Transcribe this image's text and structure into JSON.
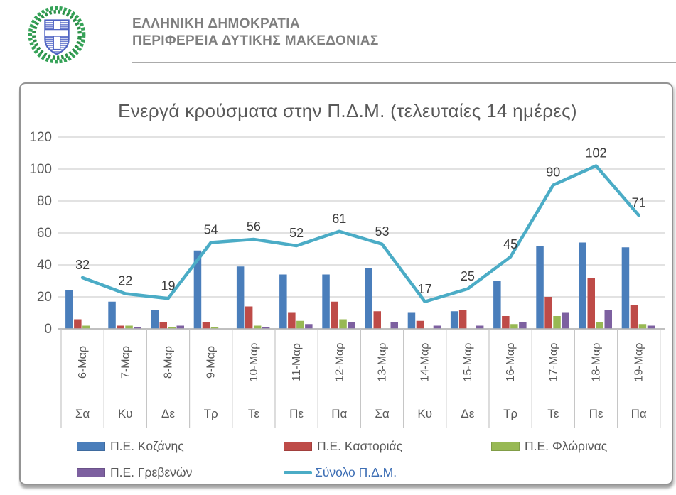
{
  "header": {
    "logo": "hellenic-republic-emblem",
    "line1": "ΕΛΛΗΝΙΚΗ ΔΗΜΟΚΡΑΤΙΑ",
    "line2": "ΠΕΡΙΦΕΡΕΙΑ ΔΥΤΙΚΗΣ ΜΑΚΕΔΟΝΙΑΣ"
  },
  "chart_data": {
    "type": "bar",
    "subtype": "clustered-bars-with-total-line",
    "title": "Ενεργά κρούσματα στην Π.Δ.Μ. (τελευταίες 14 ημέρες)",
    "categories": [
      "6-Μαρ",
      "7-Μαρ",
      "8-Μαρ",
      "9-Μαρ",
      "10-Μαρ",
      "11-Μαρ",
      "12-Μαρ",
      "13-Μαρ",
      "14-Μαρ",
      "15-Μαρ",
      "16-Μαρ",
      "17-Μαρ",
      "18-Μαρ",
      "19-Μαρ"
    ],
    "category_days": [
      "Σα",
      "Κυ",
      "Δε",
      "Τρ",
      "Τε",
      "Πε",
      "Πα",
      "Σα",
      "Κυ",
      "Δε",
      "Τρ",
      "Τε",
      "Πε",
      "Πα"
    ],
    "series": [
      {
        "name": "Π.Ε. Κοζάνης",
        "color": "#4A7EBB",
        "values": [
          24,
          17,
          12,
          49,
          39,
          34,
          34,
          38,
          10,
          11,
          30,
          52,
          54,
          51
        ]
      },
      {
        "name": "Π.Ε. Καστοριάς",
        "color": "#BE4B48",
        "values": [
          6,
          2,
          4,
          4,
          14,
          10,
          17,
          11,
          5,
          12,
          8,
          20,
          32,
          15
        ]
      },
      {
        "name": "Π.Ε. Φλώρινας",
        "color": "#98B954",
        "values": [
          2,
          2,
          1,
          1,
          2,
          5,
          6,
          0,
          0,
          0,
          3,
          8,
          4,
          3
        ]
      },
      {
        "name": "Π.Ε. Γρεβενών",
        "color": "#7D60A0",
        "values": [
          0,
          1,
          2,
          0,
          1,
          3,
          4,
          4,
          2,
          2,
          4,
          10,
          12,
          2
        ]
      }
    ],
    "line_series": {
      "name": "Σύνολο Π.Δ.Μ.",
      "color": "#4BACC6",
      "label_color": "#3E6FB5",
      "values": [
        32,
        22,
        19,
        54,
        56,
        52,
        61,
        53,
        17,
        25,
        45,
        90,
        102,
        71
      ],
      "labels_shown": true
    },
    "xlabel": "",
    "ylabel": "",
    "ylim": [
      0,
      120
    ],
    "ytick_interval": 20,
    "yticks": [
      0,
      20,
      40,
      60,
      80,
      100,
      120
    ],
    "grid": "horizontal",
    "legend_position": "bottom",
    "colors": {
      "grid_line": "#d9d9d9",
      "axis_line": "#b7b7b7",
      "separator_line": "#c6c6c6",
      "axis_text": "#595959",
      "data_label_text": "#3d3d3d",
      "title_text": "#595959"
    }
  }
}
